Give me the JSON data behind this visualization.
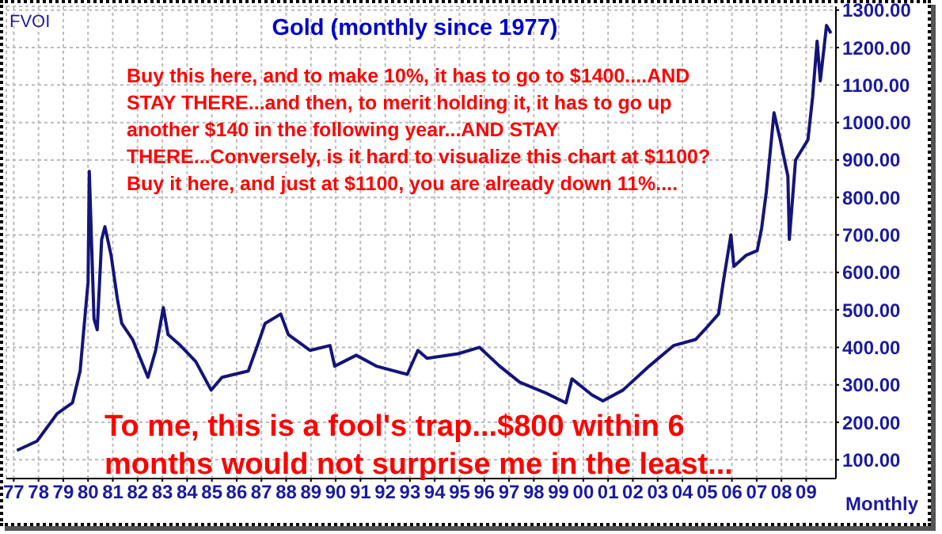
{
  "chart_data": {
    "type": "line",
    "title": "Gold (monthly since 1977)",
    "annotations": [
      "FVOI",
      "Buy this here, and to make 10%, it has to go to $1400....AND STAY THERE...and then, to merit holding it, it has to go up another $140 in the following year...AND STAY THERE...Conversely, is it hard to visualize this chart at $1100? Buy it here, and just at $1100, you are already down 11%....",
      "To me, this is a fool's trap...$800 within 6 months would not surprise me in the least...",
      "Monthly"
    ],
    "x": [
      1977.13,
      1977.94,
      1978.75,
      1979.37,
      1979.68,
      1979.81,
      1980.0,
      1980.05,
      1980.24,
      1980.37,
      1980.55,
      1980.68,
      1980.93,
      1981.18,
      1981.36,
      1981.8,
      1982.42,
      1982.73,
      1983.04,
      1983.23,
      1983.73,
      1984.35,
      1984.97,
      1985.41,
      1986.47,
      1986.84,
      1987.15,
      1987.78,
      1988.09,
      1988.96,
      1989.77,
      1989.96,
      1990.83,
      1991.64,
      1992.89,
      1993.32,
      1993.69,
      1994.94,
      1995.81,
      1996.62,
      1997.43,
      1998.49,
      1999.3,
      1999.54,
      2000.35,
      2000.79,
      2001.6,
      2002.66,
      2003.65,
      2004.53,
      2004.9,
      2005.46,
      2005.65,
      2005.96,
      2006.08,
      2006.58,
      2007.02,
      2007.2,
      2007.39,
      2007.7,
      2007.95,
      2008.26,
      2008.32,
      2008.57,
      2009.07,
      2009.26,
      2009.44,
      2009.57,
      2009.82,
      2010.0
    ],
    "series": [
      {
        "color": "#14147a",
        "values": [
          125,
          150,
          223,
          252,
          337,
          434,
          574,
          870,
          476,
          447,
          688,
          722,
          646,
          531,
          464,
          421,
          320,
          392,
          506,
          434,
          405,
          362,
          286,
          320,
          337,
          405,
          464,
          489,
          434,
          392,
          405,
          350,
          379,
          350,
          328,
          392,
          371,
          383,
          400,
          350,
          307,
          278,
          252,
          316,
          273,
          257,
          286,
          350,
          405,
          421,
          447,
          489,
          574,
          700,
          616,
          646,
          658,
          718,
          815,
          1026,
          954,
          857,
          688,
          900,
          954,
          1069,
          1217,
          1111,
          1259,
          1238
        ]
      }
    ],
    "xlim": [
      1976.7,
      2010.2
    ],
    "xticks": [
      {
        "value": 1977,
        "label": "77"
      },
      {
        "value": 1978,
        "label": "78"
      },
      {
        "value": 1979,
        "label": "79"
      },
      {
        "value": 1980,
        "label": "80"
      },
      {
        "value": 1981,
        "label": "81"
      },
      {
        "value": 1982,
        "label": "82"
      },
      {
        "value": 1983,
        "label": "83"
      },
      {
        "value": 1984,
        "label": "84"
      },
      {
        "value": 1985,
        "label": "85"
      },
      {
        "value": 1986,
        "label": "86"
      },
      {
        "value": 1987,
        "label": "87"
      },
      {
        "value": 1988,
        "label": "88"
      },
      {
        "value": 1989,
        "label": "89"
      },
      {
        "value": 1990,
        "label": "90"
      },
      {
        "value": 1991,
        "label": "91"
      },
      {
        "value": 1992,
        "label": "92"
      },
      {
        "value": 1993,
        "label": "93"
      },
      {
        "value": 1994,
        "label": "94"
      },
      {
        "value": 1995,
        "label": "95"
      },
      {
        "value": 1996,
        "label": "96"
      },
      {
        "value": 1997,
        "label": "97"
      },
      {
        "value": 1998,
        "label": "98"
      },
      {
        "value": 1999,
        "label": "99"
      },
      {
        "value": 2000,
        "label": "00"
      },
      {
        "value": 2001,
        "label": "01"
      },
      {
        "value": 2002,
        "label": "02"
      },
      {
        "value": 2003,
        "label": "03"
      },
      {
        "value": 2004,
        "label": "04"
      },
      {
        "value": 2005,
        "label": "05"
      },
      {
        "value": 2006,
        "label": "06"
      },
      {
        "value": 2007,
        "label": "07"
      },
      {
        "value": 2008,
        "label": "08"
      },
      {
        "value": 2009,
        "label": "09"
      }
    ],
    "ylim": [
      50,
      1310
    ],
    "yticks": [
      {
        "value": 100,
        "label": "100.00"
      },
      {
        "value": 200,
        "label": "200.00"
      },
      {
        "value": 300,
        "label": "300.00"
      },
      {
        "value": 400,
        "label": "400.00"
      },
      {
        "value": 500,
        "label": "500.00"
      },
      {
        "value": 600,
        "label": "600.00"
      },
      {
        "value": 700,
        "label": "700.00"
      },
      {
        "value": 800,
        "label": "800.00"
      },
      {
        "value": 900,
        "label": "900.00"
      },
      {
        "value": 1000,
        "label": "1000.00"
      },
      {
        "value": 1100,
        "label": "1100.00"
      },
      {
        "value": 1200,
        "label": "1200.00"
      },
      {
        "value": 1300,
        "label": "1300.00"
      }
    ],
    "grid": true,
    "legend": false,
    "marker": "none",
    "line_style": "solid"
  }
}
